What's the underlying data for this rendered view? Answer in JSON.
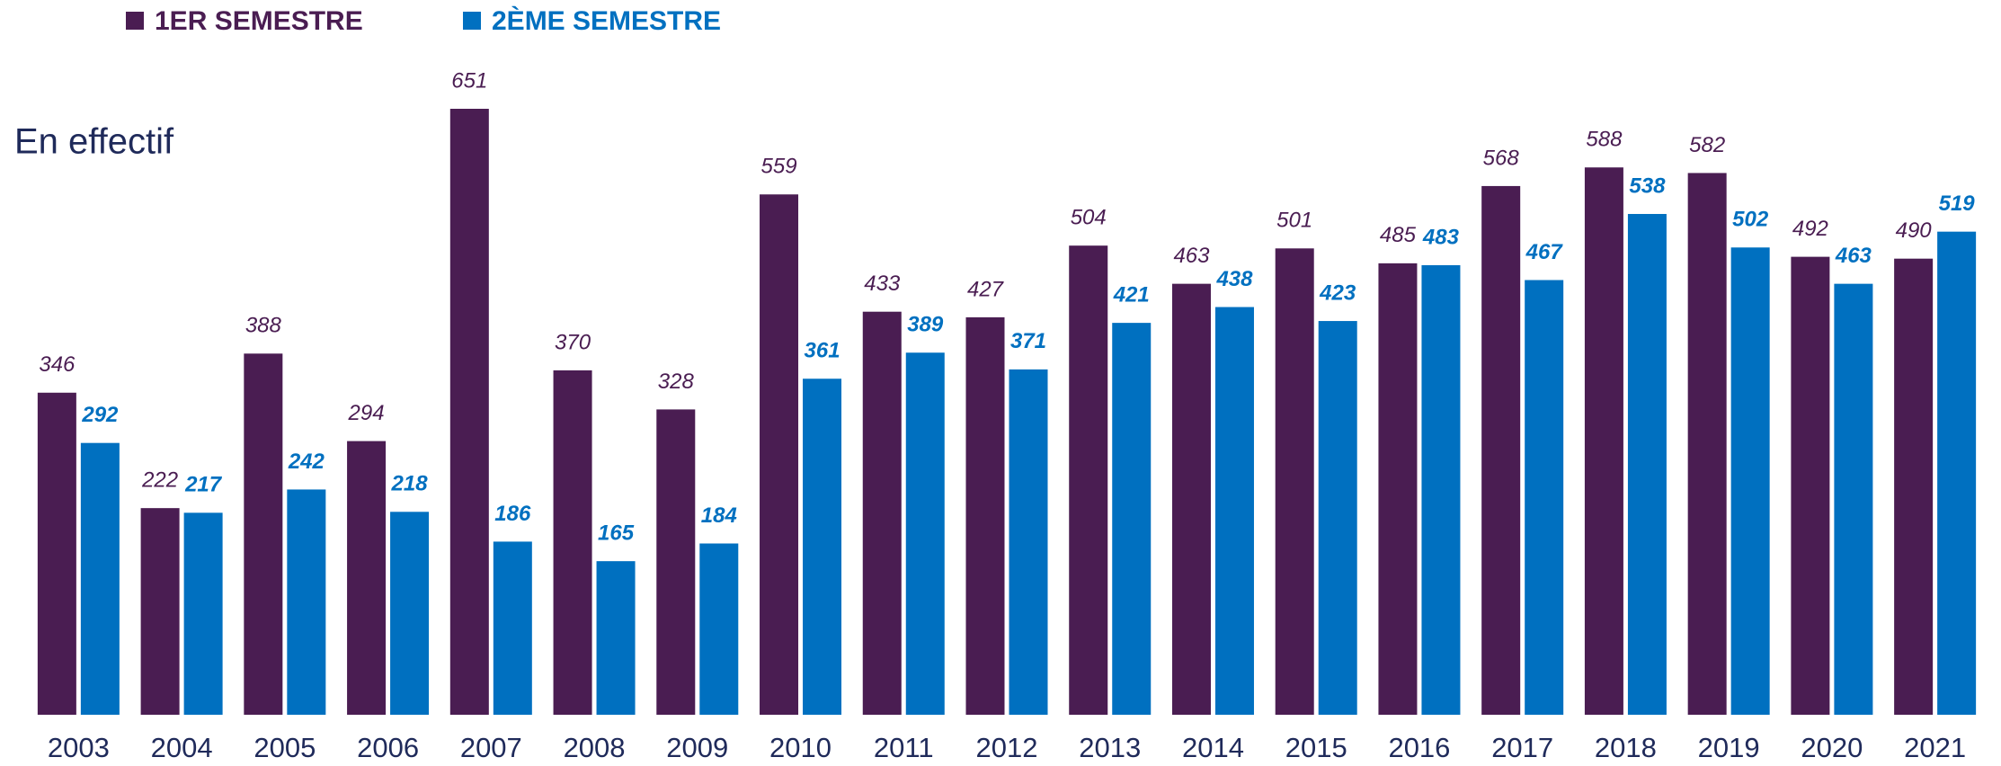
{
  "chart_data": {
    "type": "bar",
    "subtitle": "En effectif",
    "categories": [
      "2003",
      "2004",
      "2005",
      "2006",
      "2007",
      "2008",
      "2009",
      "2010",
      "2011",
      "2012",
      "2013",
      "2014",
      "2015",
      "2016",
      "2017",
      "2018",
      "2019",
      "2020",
      "2021"
    ],
    "series": [
      {
        "name": "1ER SEMESTRE",
        "color": "#4a1d52",
        "values": [
          346,
          222,
          388,
          294,
          651,
          370,
          328,
          559,
          433,
          427,
          504,
          463,
          501,
          485,
          568,
          588,
          582,
          492,
          490
        ]
      },
      {
        "name": "2ÈME SEMESTRE",
        "color": "#0070c0",
        "values": [
          292,
          217,
          242,
          218,
          186,
          165,
          184,
          361,
          389,
          371,
          421,
          438,
          423,
          483,
          467,
          538,
          502,
          463,
          519
        ]
      }
    ],
    "legend": "top-left"
  }
}
